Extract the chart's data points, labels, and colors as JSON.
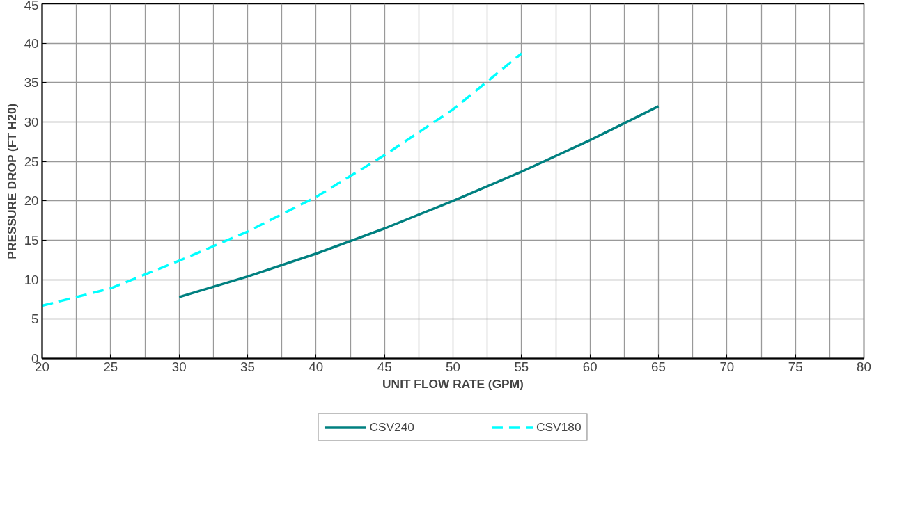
{
  "chart_data": {
    "type": "line",
    "xlabel": "UNIT FLOW RATE (GPM)",
    "ylabel": "PRESSURE DROP (FT H20)",
    "series": [
      {
        "name": "CSV240",
        "color": "#008080",
        "line_style": "solid",
        "x": [
          30,
          35,
          40,
          45,
          50,
          55,
          60,
          65
        ],
        "values": [
          7.8,
          10.4,
          13.3,
          16.5,
          20.0,
          23.7,
          27.7,
          32.0
        ]
      },
      {
        "name": "CSV180",
        "color": "#00ffff",
        "line_style": "dashed",
        "x": [
          20,
          25,
          30,
          35,
          40,
          45,
          50,
          55
        ],
        "values": [
          6.7,
          8.9,
          12.4,
          16.1,
          20.5,
          25.8,
          31.6,
          38.7
        ]
      }
    ],
    "xlim": [
      20,
      80
    ],
    "xticks": [
      20,
      25,
      30,
      35,
      40,
      45,
      50,
      55,
      60,
      65,
      70,
      75,
      80
    ],
    "ylim": [
      0,
      45
    ],
    "yticks": [
      0,
      5,
      10,
      15,
      20,
      25,
      30,
      35,
      40,
      45
    ],
    "grid": true,
    "legend": "bottom",
    "marker": "none"
  }
}
